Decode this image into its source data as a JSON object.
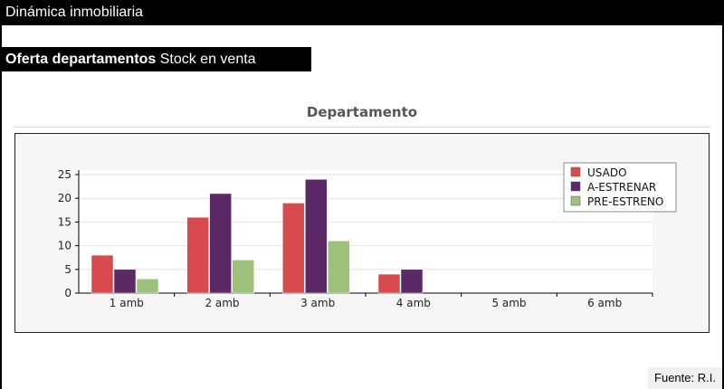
{
  "header": {
    "title": "Dinámica inmobiliaria"
  },
  "section": {
    "title_bold": "Oferta departamentos",
    "title_rest": "Stock en venta"
  },
  "footer": {
    "source": "Fuente: R.I."
  },
  "chart_data": {
    "type": "bar",
    "title": "Departamento",
    "xlabel": "",
    "ylabel": "",
    "categories": [
      "1 amb",
      "2 amb",
      "3 amb",
      "4 amb",
      "5 amb",
      "6 amb"
    ],
    "series": [
      {
        "name": "USADO",
        "color": "#d94a4f",
        "values": [
          8,
          16,
          19,
          4,
          0,
          0
        ]
      },
      {
        "name": "A-ESTRENAR",
        "color": "#5b2a66",
        "values": [
          5,
          21,
          24,
          5,
          0,
          0
        ]
      },
      {
        "name": "PRE-ESTRENO",
        "color": "#9dc07a",
        "values": [
          3,
          7,
          11,
          0,
          0,
          0
        ]
      }
    ],
    "ylim": [
      0,
      25
    ],
    "yticks": [
      0,
      5,
      10,
      15,
      20,
      25
    ],
    "grid": true,
    "legend_position": "top-right"
  }
}
